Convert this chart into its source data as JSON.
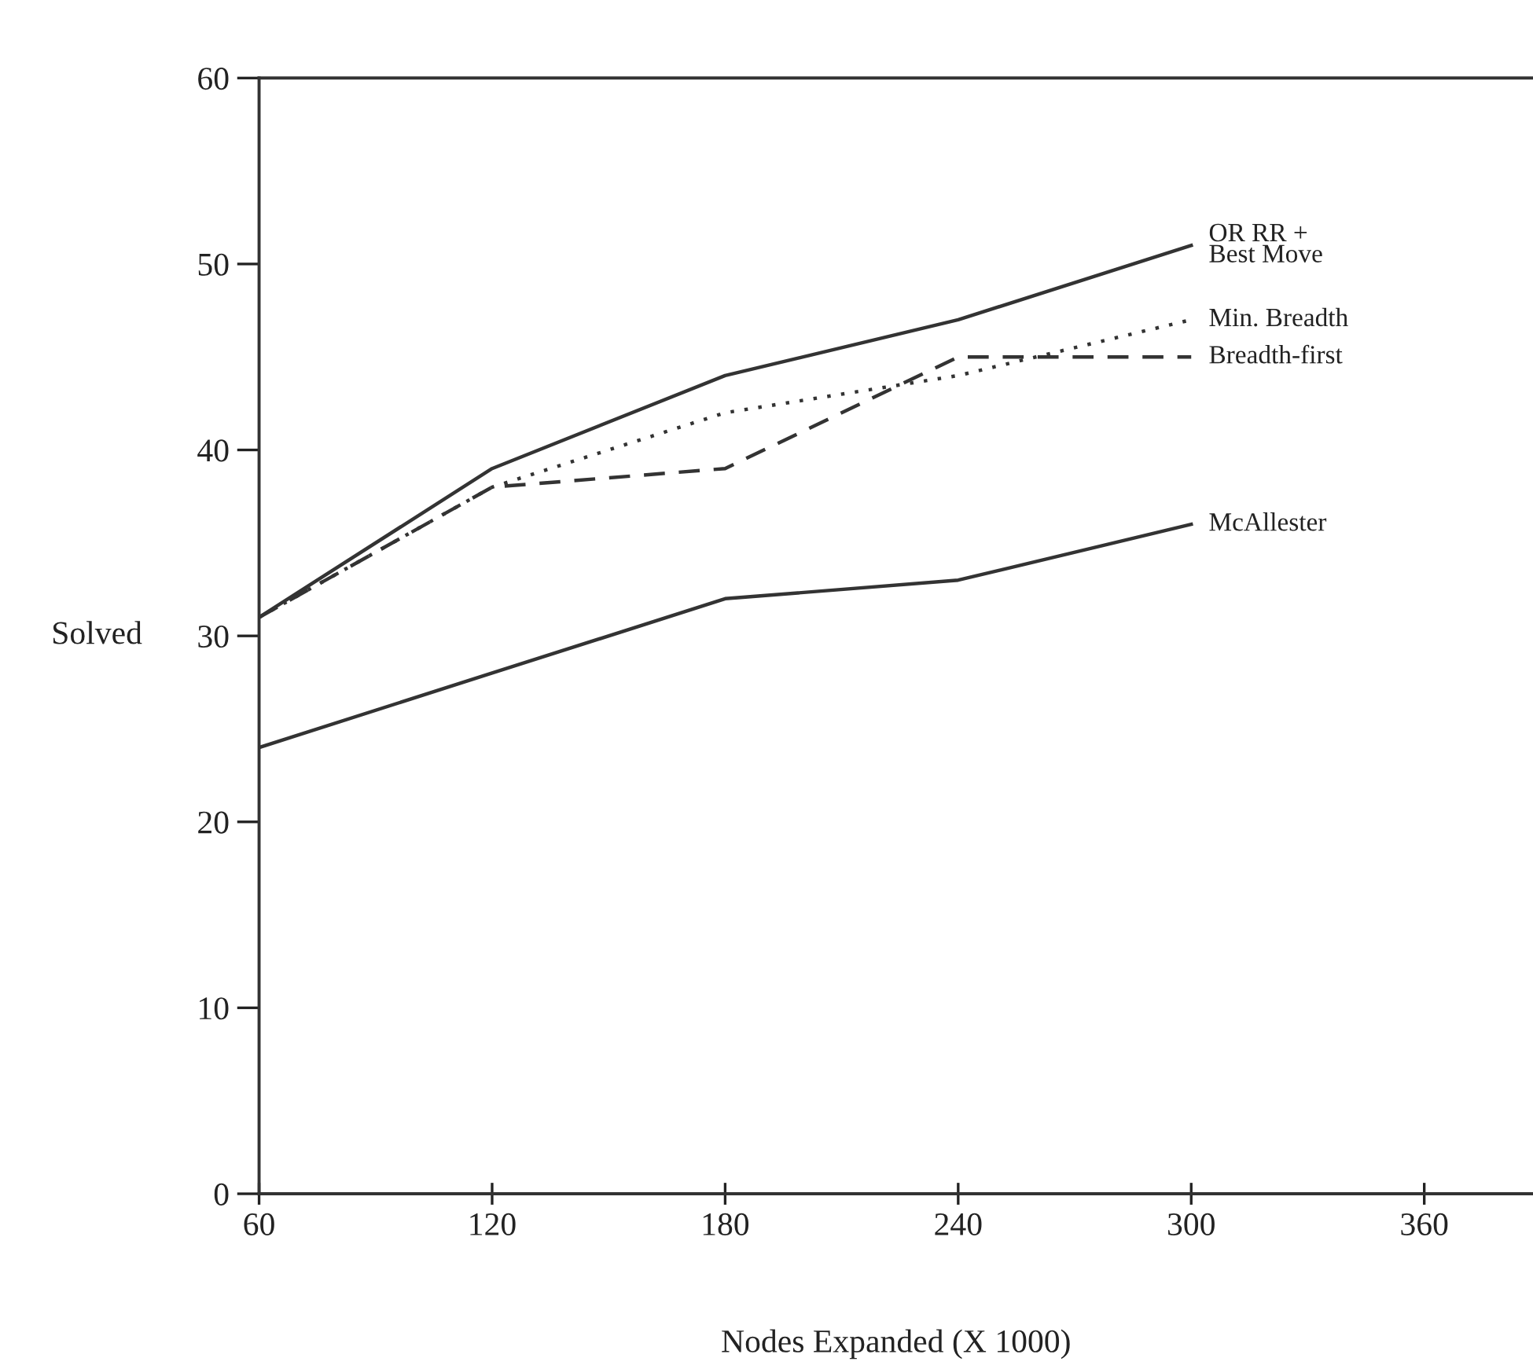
{
  "chart_data": {
    "type": "line",
    "xlabel": "Nodes Expanded (X 1000)",
    "ylabel": "Solved",
    "x": [
      60,
      120,
      180,
      240,
      300
    ],
    "series": [
      {
        "name": "OR RR +\nBest Move",
        "color": "#333333",
        "line_style": "solid",
        "values": [
          31,
          39,
          44,
          47,
          51
        ]
      },
      {
        "name": "Min. Breadth",
        "color": "#333333",
        "line_style": "dotted",
        "values": [
          31,
          38,
          42,
          44,
          47
        ]
      },
      {
        "name": "Breadth-first",
        "color": "#333333",
        "line_style": "dashed",
        "values": [
          31,
          38,
          39,
          45,
          45
        ]
      },
      {
        "name": "McAllester",
        "color": "#333333",
        "line_style": "solid",
        "values": [
          24,
          28,
          32,
          33,
          36
        ]
      }
    ],
    "xlim": [
      60,
      388
    ],
    "ylim": [
      0,
      60
    ],
    "xticks": [
      60,
      120,
      180,
      240,
      300,
      360
    ],
    "yticks": [
      0,
      10,
      20,
      30,
      40,
      50,
      60
    ],
    "grid": false,
    "legend": false,
    "marker": "none"
  }
}
